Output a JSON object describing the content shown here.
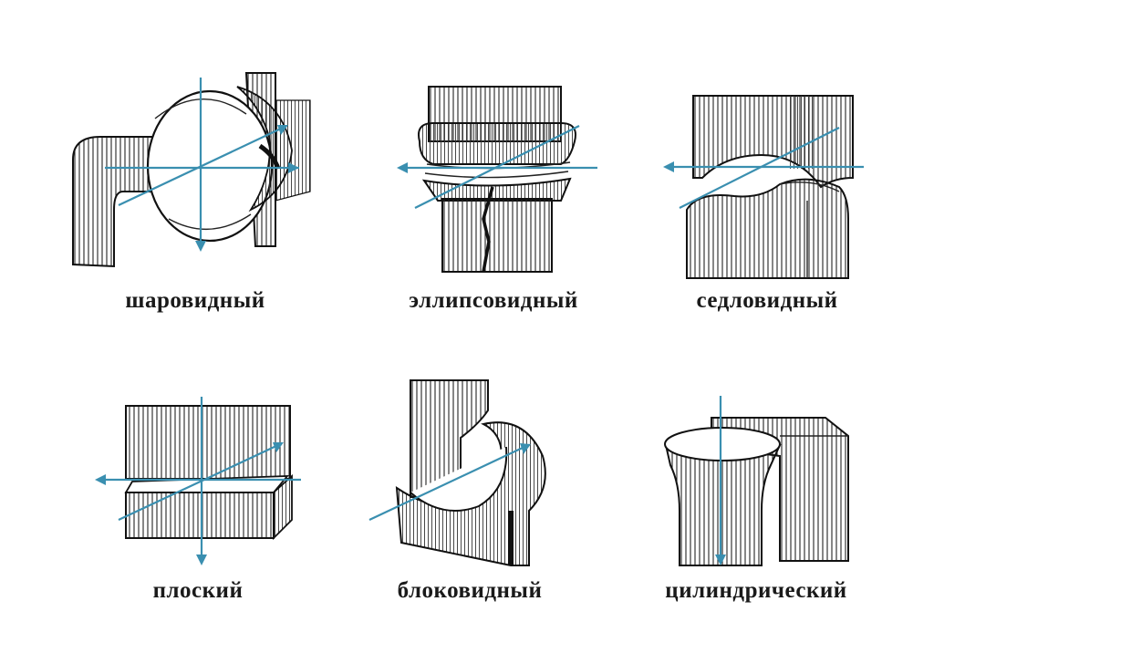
{
  "figure": {
    "joints": [
      {
        "id": "spherical",
        "label": "шаровидный",
        "icon": "ball-and-socket-joint"
      },
      {
        "id": "ellipsoid",
        "label": "эллипсовидный",
        "icon": "ellipsoid-joint"
      },
      {
        "id": "saddle",
        "label": "седловидный",
        "icon": "saddle-joint"
      },
      {
        "id": "plane",
        "label": "плоский",
        "icon": "plane-joint"
      },
      {
        "id": "hinge",
        "label": "блоковидный",
        "icon": "hinge-joint"
      },
      {
        "id": "cylindrical",
        "label": "цилиндрический",
        "icon": "pivot-joint"
      }
    ],
    "colors": {
      "axis": "#3a8fb0",
      "ink": "#111111",
      "background": "#ffffff"
    }
  }
}
